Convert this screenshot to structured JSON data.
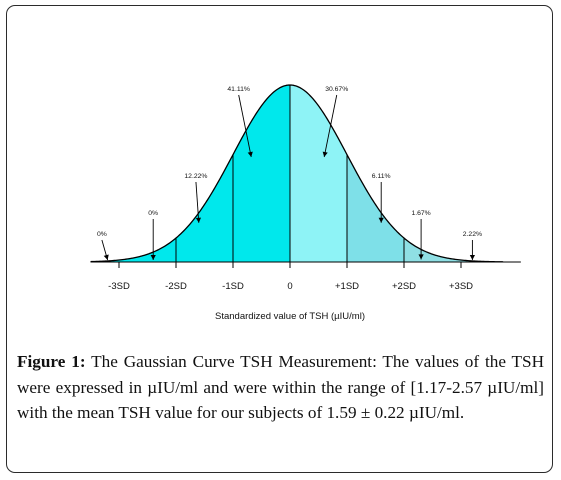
{
  "chart_data": {
    "type": "area",
    "xlabel": "Standardized value of TSH (µIU/ml)",
    "ylabel": "",
    "xlim": [
      -4.3,
      4.3
    ],
    "tick_labels": [
      "-3SD",
      "-2SD",
      "-1SD",
      "0",
      "+1SD",
      "+2SD",
      "+3SD"
    ],
    "tick_values": [
      -3,
      -2,
      -1,
      0,
      1,
      2,
      3
    ],
    "segments": [
      {
        "from": -3.3,
        "to": -3,
        "label": "0%",
        "color": "#00e8ec",
        "label_x": -3.3,
        "arrow_x": -3.2
      },
      {
        "from": -3,
        "to": -2,
        "label": "0%",
        "color": "#00e8ec",
        "label_x": -2.4,
        "arrow_x": -2.4
      },
      {
        "from": -2,
        "to": -1,
        "label": "12.22%",
        "color": "#00e8ec",
        "label_x": -1.65,
        "arrow_x": -1.6
      },
      {
        "from": -1,
        "to": 0,
        "label": "41.11%",
        "color": "#00e8ec",
        "label_x": -0.9,
        "arrow_x": -0.68
      },
      {
        "from": 0,
        "to": 1,
        "label": "30.67%",
        "color": "#8ef3f6",
        "label_x": 0.82,
        "arrow_x": 0.6
      },
      {
        "from": 1,
        "to": 2,
        "label": "6.11%",
        "color": "#7ee0e8",
        "label_x": 1.6,
        "arrow_x": 1.6
      },
      {
        "from": 2,
        "to": 3,
        "label": "1.67%",
        "color": "#8fdfe4",
        "label_x": 2.3,
        "arrow_x": 2.3
      },
      {
        "from": 3,
        "to": 3.4,
        "label": "2.22%",
        "color": "#8fdfe4",
        "label_x": 3.2,
        "arrow_x": 3.2
      }
    ],
    "fill_range": [
      -3.3,
      3.4
    ],
    "baseline_range": [
      -3.5,
      4.05
    ]
  },
  "caption": {
    "figure_label": "Figure 1:",
    "text": " The Gaussian Curve TSH Measurement: The values of the TSH were expressed in µIU/ml and were within the range of [1.17-2.57 µIU/ml] with the mean TSH value for our subjects of 1.59 ± 0.22 µIU/ml."
  }
}
